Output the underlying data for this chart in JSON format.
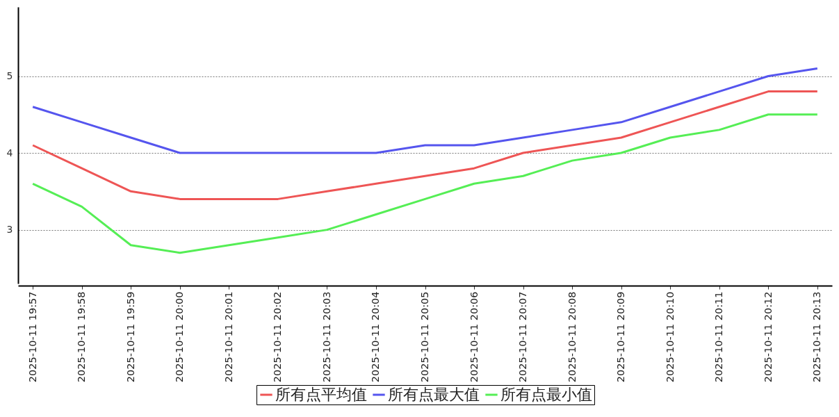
{
  "chart_data": {
    "type": "line",
    "categories": [
      "2025-10-11 19:57",
      "2025-10-11 19:58",
      "2025-10-11 19:59",
      "2025-10-11 20:00",
      "2025-10-11 20:01",
      "2025-10-11 20:02",
      "2025-10-11 20:03",
      "2025-10-11 20:04",
      "2025-10-11 20:05",
      "2025-10-11 20:06",
      "2025-10-11 20:07",
      "2025-10-11 20:08",
      "2025-10-11 20:09",
      "2025-10-11 20:10",
      "2025-10-11 20:11",
      "2025-10-11 20:12",
      "2025-10-11 20:13"
    ],
    "series": [
      {
        "name": "所有点平均值",
        "color": "#ee5555",
        "values": [
          4.1,
          3.8,
          3.5,
          3.4,
          3.4,
          3.4,
          3.5,
          3.6,
          3.7,
          3.8,
          4.0,
          4.1,
          4.2,
          4.4,
          4.6,
          4.8,
          4.8
        ]
      },
      {
        "name": "所有点最大值",
        "color": "#5555ee",
        "values": [
          4.6,
          4.4,
          4.2,
          4.0,
          4.0,
          4.0,
          4.0,
          4.0,
          4.1,
          4.1,
          4.2,
          4.3,
          4.4,
          4.6,
          4.8,
          5.0,
          5.1
        ]
      },
      {
        "name": "所有点最小值",
        "color": "#55ee55",
        "values": [
          3.6,
          3.3,
          2.8,
          2.7,
          2.8,
          2.9,
          3.0,
          3.2,
          3.4,
          3.6,
          3.7,
          3.9,
          4.0,
          4.2,
          4.3,
          4.5,
          4.5
        ]
      }
    ],
    "ylim": [
      2.3,
      5.9
    ],
    "yticks": [
      3,
      4,
      5
    ],
    "grid": "y",
    "legend": "bottom"
  }
}
